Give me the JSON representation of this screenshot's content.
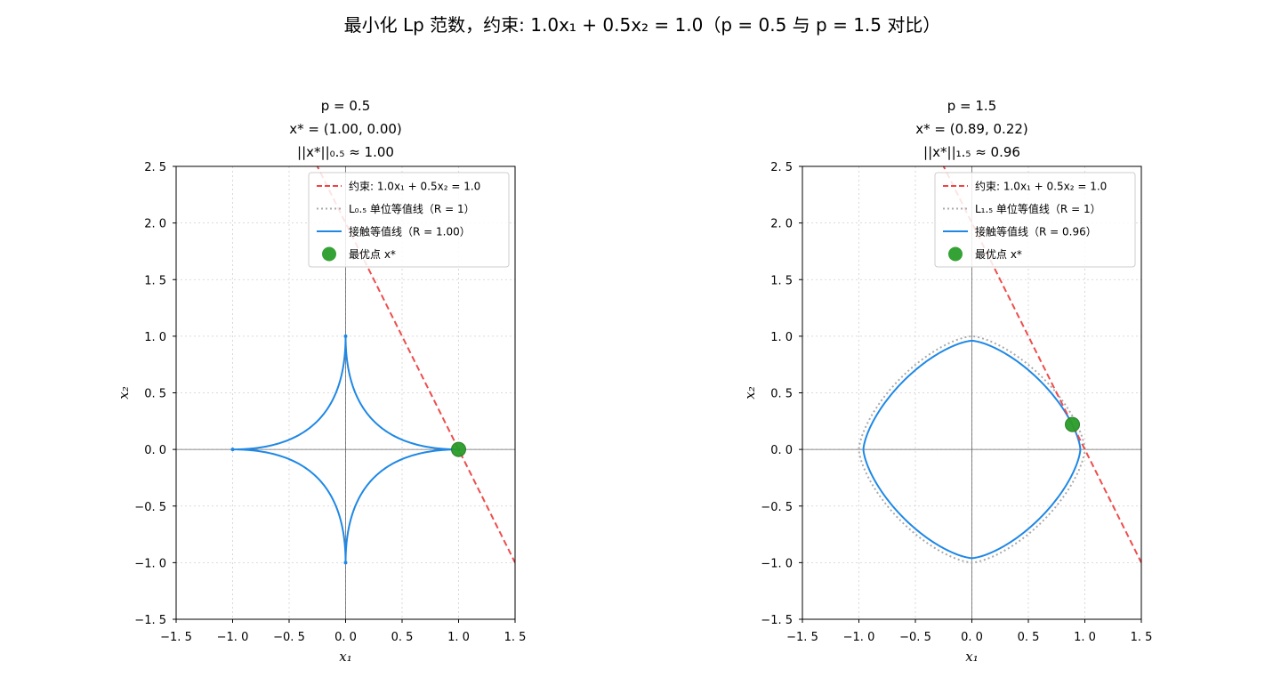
{
  "figure": {
    "suptitle": "最小化 Lp 范数，约束: 1.0x₁ + 0.5x₂ = 1.0（p = 0.5 与 p = 1.5 对比）"
  },
  "colors": {
    "constraint": "#ee4444",
    "unit_contour": "#aaaaaa",
    "touch_contour": "#1f88e5",
    "optimum": "#2a9d2a"
  },
  "chart_data": [
    {
      "type": "line",
      "title_lines": [
        "p = 0.5",
        "x* = (1.00, 0.00)",
        "||x*||₀.₅ ≈ 1.00"
      ],
      "xlabel": "x₁",
      "ylabel": "x₂",
      "xlim": [
        -1.5,
        1.5
      ],
      "ylim": [
        -1.5,
        2.5
      ],
      "xticks": [
        -1.5,
        -1.0,
        -0.5,
        0.0,
        0.5,
        1.0,
        1.5
      ],
      "yticks": [
        -1.5,
        -1.0,
        -0.5,
        0.0,
        0.5,
        1.0,
        1.5,
        2.0,
        2.5
      ],
      "xtick_labels": [
        "−1. 5",
        "−1. 0",
        "−0. 5",
        "0. 0",
        "0. 5",
        "1. 0",
        "1. 5"
      ],
      "ytick_labels": [
        "−1. 5",
        "−1. 0",
        "−0. 5",
        "0. 0",
        "0. 5",
        "1. 0",
        "1. 5",
        "2. 0",
        "2. 5"
      ],
      "grid": true,
      "legend_position": "upper-right",
      "p": 0.5,
      "constraint": {
        "a": 1.0,
        "b": 0.5,
        "c": 1.0
      },
      "unit_radius": 1.0,
      "show_unit_contour": false,
      "touch_radius": 1.0,
      "optimum": [
        1.0,
        0.0
      ],
      "legend": [
        "约束: 1.0x₁ + 0.5x₂ = 1.0",
        "L₀.₅ 单位等值线（R = 1）",
        "接触等值线（R = 1.00）",
        "最优点 x*"
      ]
    },
    {
      "type": "line",
      "title_lines": [
        "p = 1.5",
        "x* = (0.89, 0.22)",
        "||x*||₁.₅ ≈ 0.96"
      ],
      "xlabel": "x₁",
      "ylabel": "x₂",
      "xlim": [
        -1.5,
        1.5
      ],
      "ylim": [
        -1.5,
        2.5
      ],
      "xticks": [
        -1.5,
        -1.0,
        -0.5,
        0.0,
        0.5,
        1.0,
        1.5
      ],
      "yticks": [
        -1.5,
        -1.0,
        -0.5,
        0.0,
        0.5,
        1.0,
        1.5,
        2.0,
        2.5
      ],
      "xtick_labels": [
        "−1. 5",
        "−1. 0",
        "−0. 5",
        "0. 0",
        "0. 5",
        "1. 0",
        "1. 5"
      ],
      "ytick_labels": [
        "−1. 5",
        "−1. 0",
        "−0. 5",
        "0. 0",
        "0. 5",
        "1. 0",
        "1. 5",
        "2. 0",
        "2. 5"
      ],
      "grid": true,
      "legend_position": "upper-right",
      "p": 1.5,
      "constraint": {
        "a": 1.0,
        "b": 0.5,
        "c": 1.0
      },
      "unit_radius": 1.0,
      "show_unit_contour": true,
      "touch_radius": 0.96,
      "optimum": [
        0.89,
        0.22
      ],
      "legend": [
        "约束: 1.0x₁ + 0.5x₂ = 1.0",
        "L₁.₅ 单位等值线（R = 1）",
        "接触等值线（R = 0.96）",
        "最优点 x*"
      ]
    }
  ]
}
